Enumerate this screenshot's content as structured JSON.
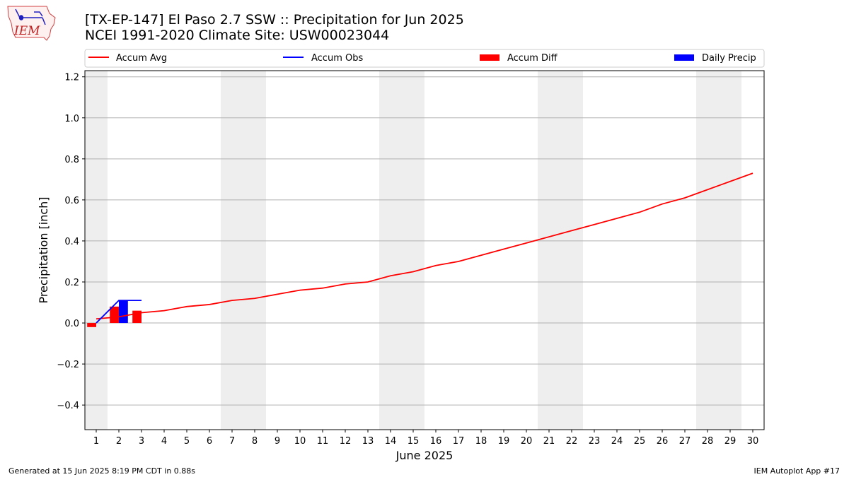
{
  "header": {
    "title_line1": "[TX-EP-147] El Paso 2.7 SSW :: Precipitation for Jun 2025",
    "title_line2": "NCEI 1991-2020 Climate Site: USW00023044"
  },
  "logo": {
    "text": "IEM",
    "icon": "iem-iowa-logo-icon"
  },
  "footer": {
    "left": "Generated at 15 Jun 2025 8:19 PM CDT in 0.88s",
    "right": "IEM Autoplot App #17"
  },
  "colors": {
    "accum_avg": "#ff0000",
    "accum_obs": "#0000ff",
    "accum_diff": "#ff0000",
    "daily_precip": "#0000ff",
    "weekend_shade": "#eeeeee",
    "grid": "#b0b0b0"
  },
  "chart_data": {
    "type": "line",
    "xlabel": "June 2025",
    "ylabel": "Precipitation [inch]",
    "xlim": [
      0.5,
      30.5
    ],
    "ylim": [
      -0.52,
      1.23
    ],
    "yticks": [
      -0.4,
      -0.2,
      0.0,
      0.2,
      0.4,
      0.6,
      0.8,
      1.0,
      1.2
    ],
    "xticks": [
      1,
      2,
      3,
      4,
      5,
      6,
      7,
      8,
      9,
      10,
      11,
      12,
      13,
      14,
      15,
      16,
      17,
      18,
      19,
      20,
      21,
      22,
      23,
      24,
      25,
      26,
      27,
      28,
      29,
      30
    ],
    "grid": "horizontal",
    "legend_position": "top",
    "weekend_shading": [
      [
        0.5,
        1.5
      ],
      [
        6.5,
        8.5
      ],
      [
        13.5,
        15.5
      ],
      [
        20.5,
        22.5
      ],
      [
        27.5,
        29.5
      ]
    ],
    "series": [
      {
        "name": "Accum Avg",
        "kind": "line",
        "x": [
          1,
          2,
          3,
          4,
          5,
          6,
          7,
          8,
          9,
          10,
          11,
          12,
          13,
          14,
          15,
          16,
          17,
          18,
          19,
          20,
          21,
          22,
          23,
          24,
          25,
          26,
          27,
          28,
          29,
          30
        ],
        "values": [
          0.02,
          0.03,
          0.05,
          0.06,
          0.08,
          0.09,
          0.11,
          0.12,
          0.14,
          0.16,
          0.17,
          0.19,
          0.2,
          0.23,
          0.25,
          0.28,
          0.3,
          0.33,
          0.36,
          0.39,
          0.42,
          0.45,
          0.48,
          0.51,
          0.54,
          0.58,
          0.61,
          0.65,
          0.69,
          0.73
        ]
      },
      {
        "name": "Accum Obs",
        "kind": "line",
        "x": [
          1,
          2,
          3
        ],
        "values": [
          0.0,
          0.11,
          0.11
        ]
      },
      {
        "name": "Accum Diff",
        "kind": "bar",
        "x": [
          1,
          2,
          3
        ],
        "values": [
          -0.02,
          0.08,
          0.06
        ]
      },
      {
        "name": "Daily Precip",
        "kind": "bar",
        "x": [
          1,
          2,
          3
        ],
        "values": [
          0.0,
          0.11,
          0.0
        ]
      }
    ]
  }
}
